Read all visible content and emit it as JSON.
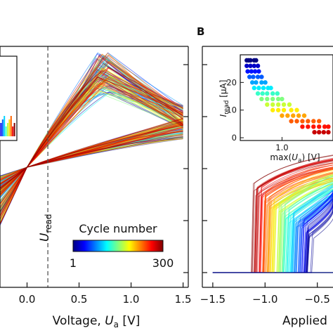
{
  "panels": {
    "b_label": "B"
  },
  "chart_data": [
    {
      "type": "line",
      "description_of_content": "Overlaid I-V sweeps colored by cycle number",
      "x_ticks": [
        "0.0",
        "0.5",
        "1.0",
        "1.5"
      ],
      "x_tick_values": [
        0.0,
        0.5,
        1.0,
        1.5
      ],
      "xlabel_prefix": "Voltage, ",
      "xlabel_var": "U",
      "xlabel_sub": "a",
      "xlabel_unit": " [V]",
      "xlim": [
        -0.26,
        1.55
      ],
      "vline_label_var": "U",
      "vline_label_sub": "read",
      "vline_x": 0.2,
      "colorbar": {
        "title": "Cycle number",
        "min_label": "1",
        "max_label": "300",
        "colormap": "jet"
      },
      "cycles": 300,
      "curve_model": {
        "crossing": [
          0.0,
          0.0
        ],
        "set_branch_peak_x": [
          0.65,
          0.8
        ],
        "set_branch_end_x": 1.5,
        "reset_branch_end_x": 1.5
      }
    },
    {
      "type": "line",
      "x_ticks": [
        "−1.5",
        "−1.0",
        "−0.5"
      ],
      "x_tick_values": [
        -1.5,
        -1.0,
        -0.5
      ],
      "xlabel_visible": "Applied",
      "xlim": [
        -1.6,
        -0.35
      ]
    },
    {
      "type": "scatter",
      "inset": true,
      "xlabel_prefix": "max(",
      "xlabel_var": "U",
      "xlabel_sub": "a",
      "xlabel_suffix": ") [V]",
      "ylabel_var": "I",
      "ylabel_sub": "read",
      "ylabel_unit": " [μA]",
      "x_ticks": [
        "1.0"
      ],
      "x_tick_values": [
        1.0
      ],
      "y_ticks": [
        "0",
        "10",
        "20"
      ],
      "y_tick_values": [
        0,
        10,
        20
      ],
      "xlim": [
        0.55,
        1.55
      ],
      "ylim": [
        -1,
        30
      ],
      "points": [
        [
          0.62,
          28
        ],
        [
          0.64,
          28
        ],
        [
          0.66,
          28
        ],
        [
          0.7,
          28
        ],
        [
          0.72,
          28
        ],
        [
          0.62,
          26
        ],
        [
          0.66,
          26
        ],
        [
          0.7,
          26
        ],
        [
          0.74,
          26
        ],
        [
          0.63,
          24
        ],
        [
          0.67,
          24
        ],
        [
          0.71,
          24
        ],
        [
          0.75,
          24
        ],
        [
          0.65,
          22
        ],
        [
          0.69,
          22
        ],
        [
          0.74,
          22
        ],
        [
          0.78,
          22
        ],
        [
          0.68,
          20
        ],
        [
          0.72,
          20
        ],
        [
          0.78,
          20
        ],
        [
          0.82,
          20
        ],
        [
          0.7,
          18
        ],
        [
          0.75,
          18
        ],
        [
          0.8,
          18
        ],
        [
          0.85,
          18
        ],
        [
          0.88,
          18
        ],
        [
          0.74,
          16
        ],
        [
          0.79,
          16
        ],
        [
          0.84,
          16
        ],
        [
          0.9,
          16
        ],
        [
          0.95,
          16
        ],
        [
          0.78,
          14
        ],
        [
          0.84,
          14
        ],
        [
          0.9,
          14
        ],
        [
          0.96,
          14
        ],
        [
          1.0,
          14
        ],
        [
          0.84,
          12
        ],
        [
          0.9,
          12
        ],
        [
          0.96,
          12
        ],
        [
          1.02,
          12
        ],
        [
          1.08,
          12
        ],
        [
          0.9,
          10
        ],
        [
          0.96,
          10
        ],
        [
          1.02,
          10
        ],
        [
          1.1,
          10
        ],
        [
          1.16,
          10
        ],
        [
          1.0,
          8
        ],
        [
          1.06,
          8
        ],
        [
          1.12,
          8
        ],
        [
          1.18,
          8
        ],
        [
          1.24,
          8
        ],
        [
          1.1,
          6
        ],
        [
          1.16,
          6
        ],
        [
          1.22,
          6
        ],
        [
          1.28,
          6
        ],
        [
          1.34,
          6
        ],
        [
          1.4,
          6
        ],
        [
          1.22,
          4
        ],
        [
          1.28,
          4
        ],
        [
          1.34,
          4
        ],
        [
          1.4,
          4
        ],
        [
          1.46,
          4
        ],
        [
          1.5,
          4
        ],
        [
          1.35,
          2
        ],
        [
          1.4,
          2
        ],
        [
          1.45,
          2
        ],
        [
          1.5,
          2
        ],
        [
          1.53,
          2
        ]
      ]
    }
  ],
  "colors": {
    "vline": "#555555",
    "axis": "#111111"
  }
}
